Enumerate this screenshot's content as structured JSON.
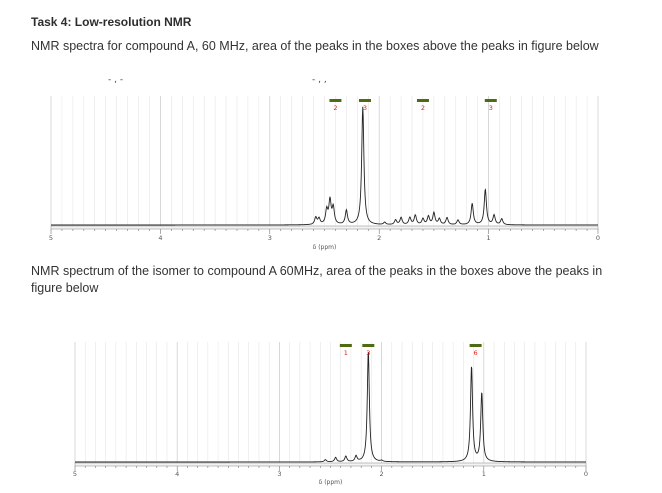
{
  "task": {
    "title": "Task 4: Low-resolution NMR",
    "para1": "NMR spectra for compound A, 60 MHz, area of the peaks in the boxes above the peaks in figure below",
    "para2": "NMR spectrum of the isomer to compound A 60MHz, area of the peaks in the boxes above the peaks in figure below",
    "cropped_fragment_left": "- , -",
    "cropped_fragment_right": "- , ,"
  },
  "colors": {
    "trace": "#222222",
    "integral_bar": "#4f6b12",
    "integral_label": "#e02020",
    "grid": "#e2e2e2"
  },
  "chart_data": [
    {
      "type": "line",
      "title": "",
      "xlabel": "δ (ppm)",
      "ylabel": "",
      "xlim": [
        5,
        0
      ],
      "x_ticks": [
        "5",
        "4",
        "3",
        "2",
        "1",
        "0"
      ],
      "integrals": [
        {
          "center": 2.4,
          "label": "2"
        },
        {
          "center": 2.13,
          "label": "3"
        },
        {
          "center": 1.6,
          "label": "2"
        },
        {
          "center": 0.98,
          "label": "3"
        }
      ],
      "peaks": [
        {
          "x": 2.58,
          "h": 0.06
        },
        {
          "x": 2.55,
          "h": 0.05
        },
        {
          "x": 2.48,
          "h": 0.12
        },
        {
          "x": 2.45,
          "h": 0.2
        },
        {
          "x": 2.42,
          "h": 0.14
        },
        {
          "x": 2.3,
          "h": 0.12
        },
        {
          "x": 2.15,
          "h": 1.0
        },
        {
          "x": 1.95,
          "h": 0.02
        },
        {
          "x": 1.85,
          "h": 0.04
        },
        {
          "x": 1.8,
          "h": 0.06
        },
        {
          "x": 1.72,
          "h": 0.06
        },
        {
          "x": 1.67,
          "h": 0.08
        },
        {
          "x": 1.6,
          "h": 0.05
        },
        {
          "x": 1.55,
          "h": 0.07
        },
        {
          "x": 1.5,
          "h": 0.1
        },
        {
          "x": 1.45,
          "h": 0.05
        },
        {
          "x": 1.38,
          "h": 0.06
        },
        {
          "x": 1.28,
          "h": 0.04
        },
        {
          "x": 1.15,
          "h": 0.18
        },
        {
          "x": 1.03,
          "h": 0.3
        },
        {
          "x": 0.95,
          "h": 0.08
        },
        {
          "x": 0.88,
          "h": 0.05
        }
      ]
    },
    {
      "type": "line",
      "title": "",
      "xlabel": "δ (ppm)",
      "ylabel": "",
      "xlim": [
        5,
        0
      ],
      "x_ticks": [
        "5",
        "4",
        "3",
        "2",
        "1",
        "0"
      ],
      "integrals": [
        {
          "center": 2.35,
          "label": "1"
        },
        {
          "center": 2.13,
          "label": "3"
        },
        {
          "center": 1.08,
          "label": "6"
        }
      ],
      "peaks": [
        {
          "x": 2.55,
          "h": 0.02
        },
        {
          "x": 2.45,
          "h": 0.04
        },
        {
          "x": 2.35,
          "h": 0.05
        },
        {
          "x": 2.25,
          "h": 0.05
        },
        {
          "x": 2.13,
          "h": 1.0
        },
        {
          "x": 2.0,
          "h": 0.01
        },
        {
          "x": 1.12,
          "h": 0.86
        },
        {
          "x": 1.02,
          "h": 0.62
        }
      ]
    }
  ]
}
